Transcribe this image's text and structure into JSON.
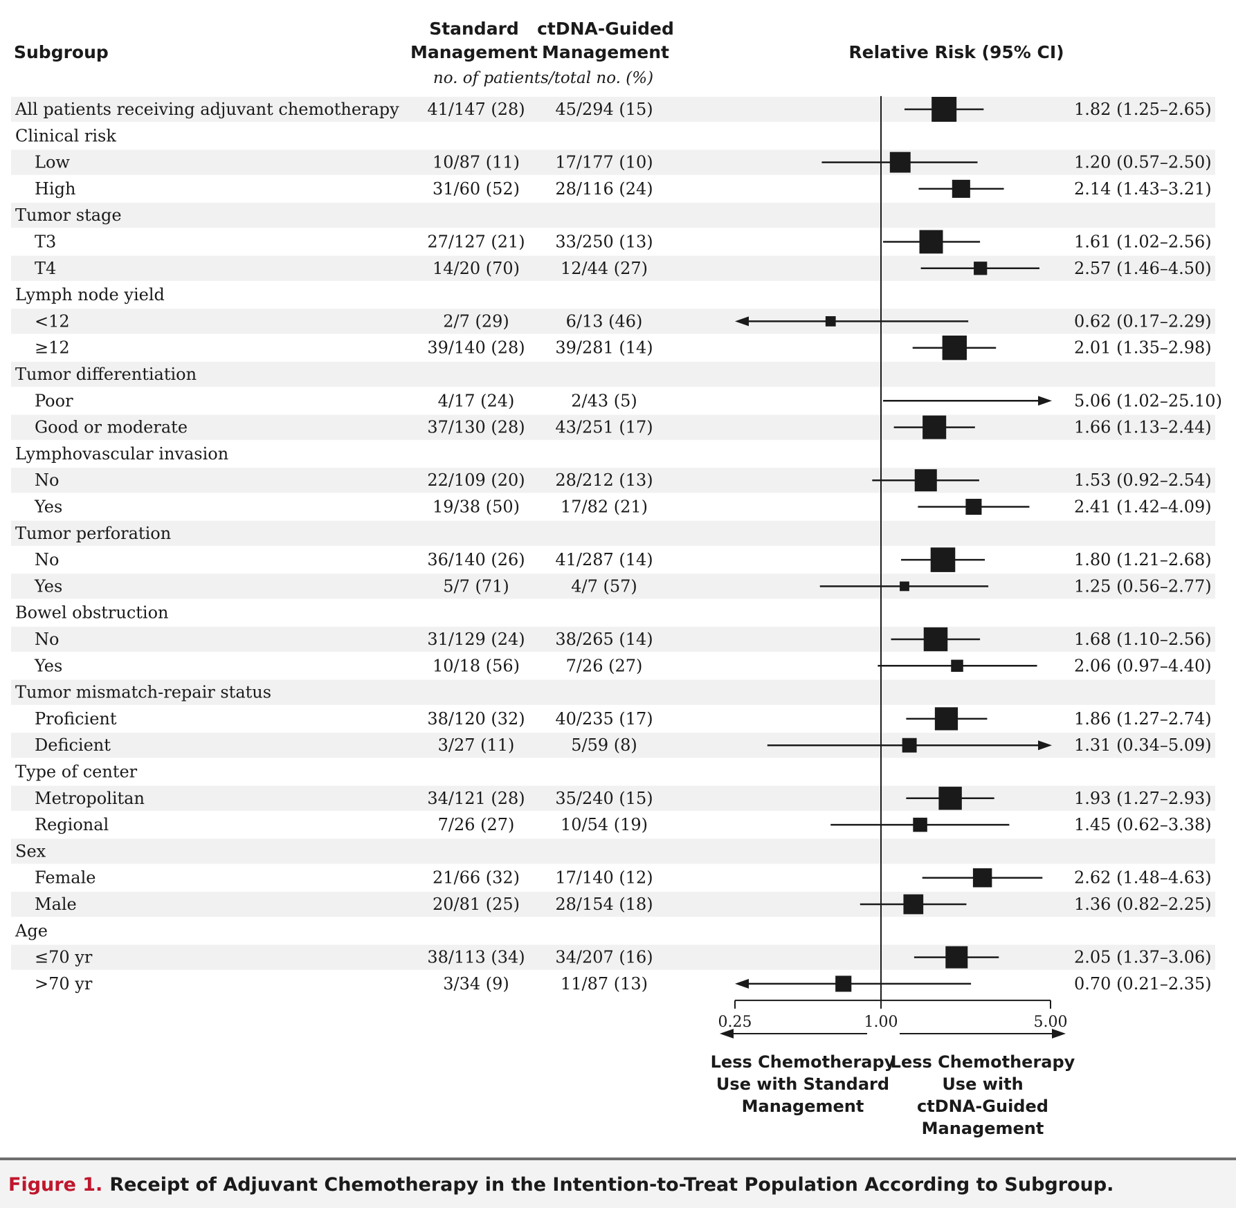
{
  "chart_data": {
    "type": "forest",
    "headers": {
      "subgroup": "Subgroup",
      "standard": [
        "Standard",
        "Management"
      ],
      "ctdna": [
        "ctDNA-Guided",
        "Management"
      ],
      "counts_note": "no. of patients/total no. (%)",
      "rr": "Relative Risk (95% CI)"
    },
    "xaxis": {
      "scale": "log",
      "min": 0.25,
      "max": 5.0,
      "reference": 1.0,
      "ticks": [
        0.25,
        1.0,
        5.0
      ],
      "tick_labels": [
        "0.25",
        "1.00",
        "5.00"
      ]
    },
    "directions": {
      "left": [
        "Less Chemotherapy",
        "Use with Standard",
        "Management"
      ],
      "right": [
        "Less Chemotherapy",
        "Use with",
        "ctDNA-Guided",
        "Management"
      ]
    },
    "rows": [
      {
        "label": "All patients receiving adjuvant chemotherapy",
        "indent": false,
        "header": false,
        "std": "41/147 (28)",
        "ct": "45/294 (15)",
        "rr": 1.82,
        "lo": 1.25,
        "hi": 2.65,
        "ci_text": "1.82 (1.25–2.65)"
      },
      {
        "label": "Clinical risk",
        "indent": false,
        "header": true
      },
      {
        "label": "Low",
        "indent": true,
        "header": false,
        "std": "10/87 (11)",
        "ct": "17/177 (10)",
        "rr": 1.2,
        "lo": 0.57,
        "hi": 2.5,
        "ci_text": "1.20 (0.57–2.50)"
      },
      {
        "label": "High",
        "indent": true,
        "header": false,
        "std": "31/60 (52)",
        "ct": "28/116 (24)",
        "rr": 2.14,
        "lo": 1.43,
        "hi": 3.21,
        "ci_text": "2.14 (1.43–3.21)"
      },
      {
        "label": "Tumor stage",
        "indent": false,
        "header": true
      },
      {
        "label": "T3",
        "indent": true,
        "header": false,
        "std": "27/127 (21)",
        "ct": "33/250 (13)",
        "rr": 1.61,
        "lo": 1.02,
        "hi": 2.56,
        "ci_text": "1.61 (1.02–2.56)"
      },
      {
        "label": "T4",
        "indent": true,
        "header": false,
        "std": "14/20 (70)",
        "ct": "12/44 (27)",
        "rr": 2.57,
        "lo": 1.46,
        "hi": 4.5,
        "ci_text": "2.57 (1.46–4.50)"
      },
      {
        "label": "Lymph node yield",
        "indent": false,
        "header": true
      },
      {
        "label": "<12",
        "indent": true,
        "header": false,
        "std": "2/7 (29)",
        "ct": "6/13 (46)",
        "rr": 0.62,
        "lo": 0.17,
        "hi": 2.29,
        "ci_text": "0.62 (0.17–2.29)"
      },
      {
        "label": "≥12",
        "indent": true,
        "header": false,
        "std": "39/140 (28)",
        "ct": "39/281 (14)",
        "rr": 2.01,
        "lo": 1.35,
        "hi": 2.98,
        "ci_text": "2.01 (1.35–2.98)"
      },
      {
        "label": "Tumor differentiation",
        "indent": false,
        "header": true
      },
      {
        "label": "Poor",
        "indent": true,
        "header": false,
        "std": "4/17 (24)",
        "ct": "2/43 (5)",
        "rr": 5.06,
        "lo": 1.02,
        "hi": 25.1,
        "ci_text": "5.06 (1.02–25.10)"
      },
      {
        "label": "Good or moderate",
        "indent": true,
        "header": false,
        "std": "37/130 (28)",
        "ct": "43/251 (17)",
        "rr": 1.66,
        "lo": 1.13,
        "hi": 2.44,
        "ci_text": "1.66 (1.13–2.44)"
      },
      {
        "label": "Lymphovascular invasion",
        "indent": false,
        "header": true
      },
      {
        "label": "No",
        "indent": true,
        "header": false,
        "std": "22/109 (20)",
        "ct": "28/212 (13)",
        "rr": 1.53,
        "lo": 0.92,
        "hi": 2.54,
        "ci_text": "1.53 (0.92–2.54)"
      },
      {
        "label": "Yes",
        "indent": true,
        "header": false,
        "std": "19/38 (50)",
        "ct": "17/82 (21)",
        "rr": 2.41,
        "lo": 1.42,
        "hi": 4.09,
        "ci_text": "2.41 (1.42–4.09)"
      },
      {
        "label": "Tumor perforation",
        "indent": false,
        "header": true
      },
      {
        "label": "No",
        "indent": true,
        "header": false,
        "std": "36/140 (26)",
        "ct": "41/287 (14)",
        "rr": 1.8,
        "lo": 1.21,
        "hi": 2.68,
        "ci_text": "1.80 (1.21–2.68)"
      },
      {
        "label": "Yes",
        "indent": true,
        "header": false,
        "std": "5/7 (71)",
        "ct": "4/7 (57)",
        "rr": 1.25,
        "lo": 0.56,
        "hi": 2.77,
        "ci_text": "1.25 (0.56–2.77)"
      },
      {
        "label": "Bowel obstruction",
        "indent": false,
        "header": true
      },
      {
        "label": "No",
        "indent": true,
        "header": false,
        "std": "31/129 (24)",
        "ct": "38/265 (14)",
        "rr": 1.68,
        "lo": 1.1,
        "hi": 2.56,
        "ci_text": "1.68 (1.10–2.56)"
      },
      {
        "label": "Yes",
        "indent": true,
        "header": false,
        "std": "10/18 (56)",
        "ct": "7/26 (27)",
        "rr": 2.06,
        "lo": 0.97,
        "hi": 4.4,
        "ci_text": "2.06 (0.97–4.40)"
      },
      {
        "label": "Tumor mismatch-repair status",
        "indent": false,
        "header": true
      },
      {
        "label": "Proficient",
        "indent": true,
        "header": false,
        "std": "38/120 (32)",
        "ct": "40/235 (17)",
        "rr": 1.86,
        "lo": 1.27,
        "hi": 2.74,
        "ci_text": "1.86 (1.27–2.74)"
      },
      {
        "label": "Deficient",
        "indent": true,
        "header": false,
        "std": "3/27 (11)",
        "ct": "5/59 (8)",
        "rr": 1.31,
        "lo": 0.34,
        "hi": 5.09,
        "ci_text": "1.31 (0.34–5.09)"
      },
      {
        "label": "Type of center",
        "indent": false,
        "header": true
      },
      {
        "label": "Metropolitan",
        "indent": true,
        "header": false,
        "std": "34/121 (28)",
        "ct": "35/240 (15)",
        "rr": 1.93,
        "lo": 1.27,
        "hi": 2.93,
        "ci_text": "1.93 (1.27–2.93)"
      },
      {
        "label": "Regional",
        "indent": true,
        "header": false,
        "std": "7/26 (27)",
        "ct": "10/54 (19)",
        "rr": 1.45,
        "lo": 0.62,
        "hi": 3.38,
        "ci_text": "1.45 (0.62–3.38)"
      },
      {
        "label": "Sex",
        "indent": false,
        "header": true
      },
      {
        "label": "Female",
        "indent": true,
        "header": false,
        "std": "21/66 (32)",
        "ct": "17/140 (12)",
        "rr": 2.62,
        "lo": 1.48,
        "hi": 4.63,
        "ci_text": "2.62 (1.48–4.63)"
      },
      {
        "label": "Male",
        "indent": true,
        "header": false,
        "std": "20/81 (25)",
        "ct": "28/154 (18)",
        "rr": 1.36,
        "lo": 0.82,
        "hi": 2.25,
        "ci_text": "1.36 (0.82–2.25)"
      },
      {
        "label": "Age",
        "indent": false,
        "header": true
      },
      {
        "label": "≤70 yr",
        "indent": true,
        "header": false,
        "std": "38/113 (34)",
        "ct": "34/207 (16)",
        "rr": 2.05,
        "lo": 1.37,
        "hi": 3.06,
        "ci_text": "2.05 (1.37–3.06)"
      },
      {
        "label": ">70 yr",
        "indent": true,
        "header": false,
        "std": "3/34 (9)",
        "ct": "11/87 (13)",
        "rr": 0.7,
        "lo": 0.21,
        "hi": 2.35,
        "ci_text": "0.70 (0.21–2.35)"
      }
    ]
  },
  "caption": {
    "label": "Figure 1.",
    "title": "Receipt of Adjuvant Chemotherapy in the Intention-to-Treat Population According to Subgroup."
  },
  "colors": {
    "stripe": "#f1f1f1",
    "ink": "#1a1a1a",
    "caption_bg": "#f3f3f3",
    "caption_rule": "#6e6e6e",
    "caption_label": "#c0162c"
  }
}
